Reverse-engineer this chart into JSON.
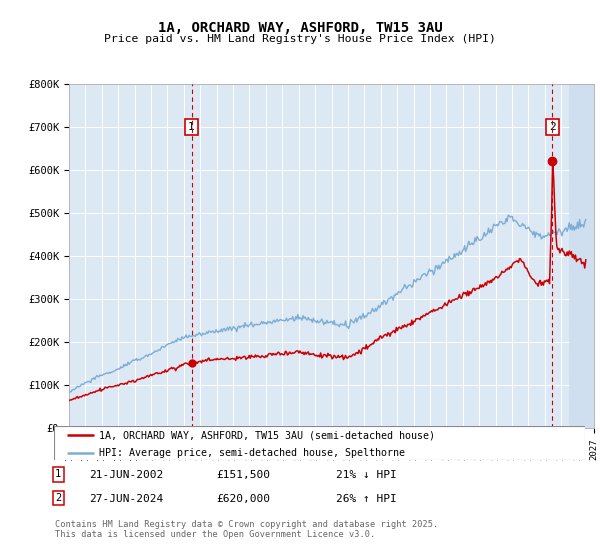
{
  "title": "1A, ORCHARD WAY, ASHFORD, TW15 3AU",
  "subtitle": "Price paid vs. HM Land Registry's House Price Index (HPI)",
  "legend_line1": "1A, ORCHARD WAY, ASHFORD, TW15 3AU (semi-detached house)",
  "legend_line2": "HPI: Average price, semi-detached house, Spelthorne",
  "annotation1": {
    "num": "1",
    "date": "21-JUN-2002",
    "price": "£151,500",
    "pct": "21% ↓ HPI",
    "x_year": 2002.47
  },
  "annotation2": {
    "num": "2",
    "date": "27-JUN-2024",
    "price": "£620,000",
    "pct": "26% ↑ HPI",
    "x_year": 2024.47
  },
  "footer": "Contains HM Land Registry data © Crown copyright and database right 2025.\nThis data is licensed under the Open Government Licence v3.0.",
  "red_color": "#cc0000",
  "blue_color": "#7dadd4",
  "background_color": "#dce9f5",
  "plot_bg": "#ffffff",
  "ylim": [
    0,
    800000
  ],
  "xlim_start": 1995,
  "xlim_end": 2027
}
